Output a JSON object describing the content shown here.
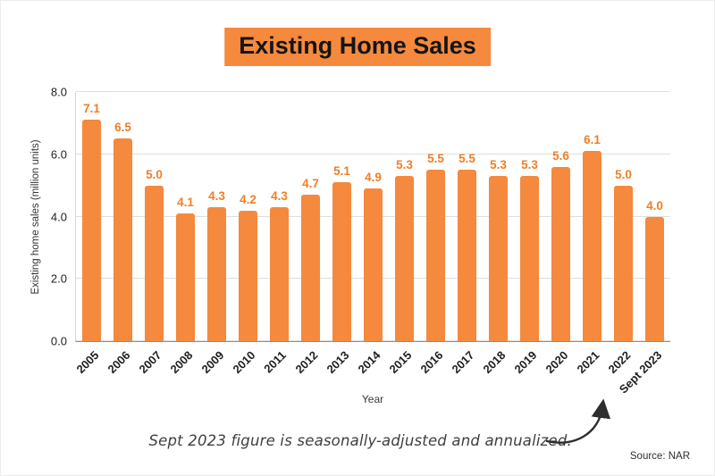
{
  "title": "Existing Home Sales",
  "chart_data": {
    "type": "bar",
    "categories": [
      "2005",
      "2006",
      "2007",
      "2008",
      "2009",
      "2010",
      "2011",
      "2012",
      "2013",
      "2014",
      "2015",
      "2016",
      "2017",
      "2018",
      "2019",
      "2020",
      "2021",
      "2022",
      "Sept 2023"
    ],
    "values": [
      7.1,
      6.5,
      5.0,
      4.1,
      4.3,
      4.2,
      4.3,
      4.7,
      5.1,
      4.9,
      5.3,
      5.5,
      5.5,
      5.3,
      5.3,
      5.6,
      6.1,
      5.0,
      4.0
    ],
    "title": "Existing Home Sales",
    "xlabel": "Year",
    "ylabel": "Existing home sales (million units)",
    "ylim": [
      0,
      8
    ],
    "yticks": [
      "0.0",
      "2.0",
      "4.0",
      "6.0",
      "8.0"
    ],
    "grid": true,
    "legend": "none",
    "bar_color": "#F5893D",
    "value_label_color": "#F07E26"
  },
  "annotation": {
    "text": "Sept 2023 figure is seasonally-adjusted and annualized."
  },
  "source": {
    "text": "Source: NAR"
  }
}
